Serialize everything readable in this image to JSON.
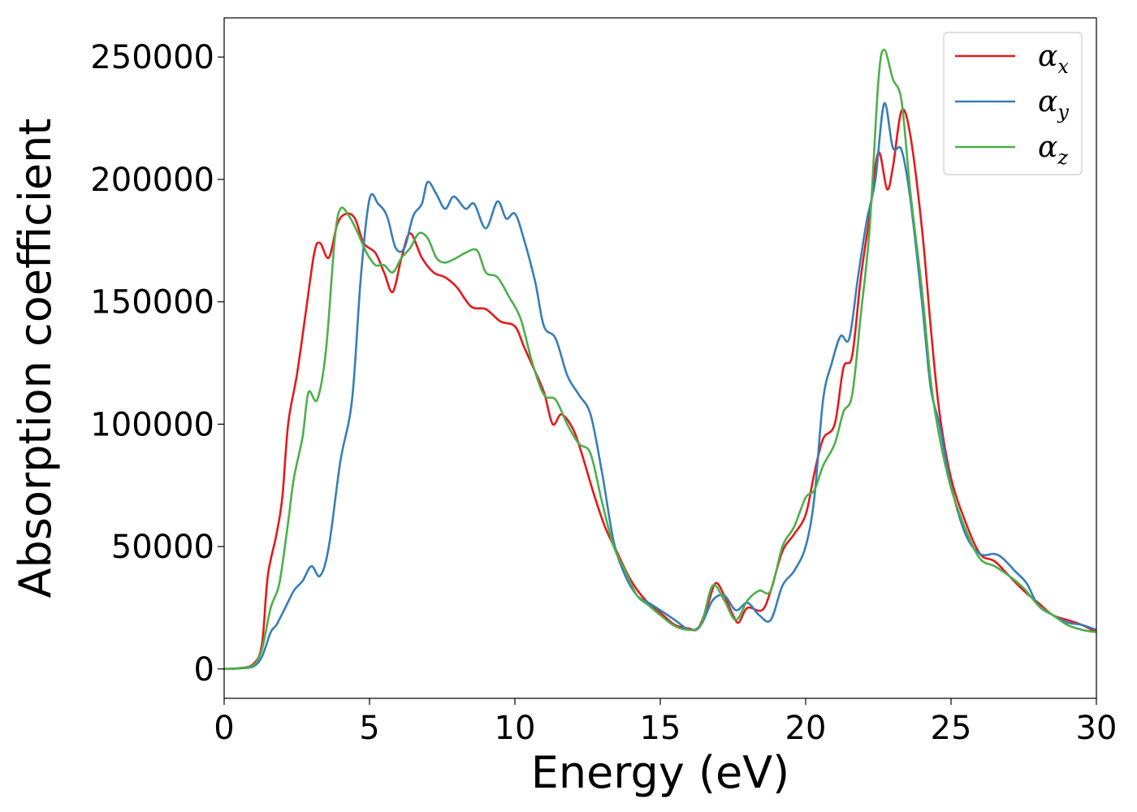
{
  "chart_data": {
    "type": "line",
    "title": "",
    "xlabel": "Energy (eV)",
    "ylabel": "Absorption coefficient",
    "xlim": [
      0,
      30
    ],
    "ylim": [
      -12000,
      266000
    ],
    "xticks": [
      0,
      5,
      10,
      15,
      20,
      25,
      30
    ],
    "yticks": [
      0,
      50000,
      100000,
      150000,
      200000,
      250000
    ],
    "grid": false,
    "legend_position": "top-right",
    "series": [
      {
        "name": "α",
        "subscript": "x",
        "color": "#e41a1c",
        "points": [
          [
            0,
            0
          ],
          [
            0.5,
            300
          ],
          [
            1,
            2000
          ],
          [
            1.3,
            10000
          ],
          [
            1.5,
            38000
          ],
          [
            1.8,
            55000
          ],
          [
            2,
            70000
          ],
          [
            2.2,
            100000
          ],
          [
            2.5,
            120000
          ],
          [
            2.8,
            145000
          ],
          [
            3.1,
            170000
          ],
          [
            3.3,
            174000
          ],
          [
            3.6,
            168000
          ],
          [
            3.9,
            182000
          ],
          [
            4.2,
            186000
          ],
          [
            4.5,
            184000
          ],
          [
            4.8,
            174000
          ],
          [
            5.2,
            170000
          ],
          [
            5.5,
            162000
          ],
          [
            5.8,
            154000
          ],
          [
            6.1,
            168000
          ],
          [
            6.4,
            178000
          ],
          [
            6.8,
            168000
          ],
          [
            7.2,
            162000
          ],
          [
            7.6,
            160000
          ],
          [
            8,
            156000
          ],
          [
            8.5,
            148000
          ],
          [
            9,
            147000
          ],
          [
            9.5,
            142000
          ],
          [
            10,
            140000
          ],
          [
            10.3,
            132000
          ],
          [
            10.6,
            124000
          ],
          [
            11,
            113000
          ],
          [
            11.3,
            100000
          ],
          [
            11.6,
            104000
          ],
          [
            12,
            98000
          ],
          [
            12.3,
            88000
          ],
          [
            12.7,
            72000
          ],
          [
            13.1,
            58000
          ],
          [
            13.5,
            48000
          ],
          [
            14,
            36000
          ],
          [
            14.5,
            28000
          ],
          [
            15,
            23000
          ],
          [
            15.5,
            18000
          ],
          [
            16,
            16500
          ],
          [
            16.3,
            16500
          ],
          [
            16.6,
            25000
          ],
          [
            16.9,
            35000
          ],
          [
            17.2,
            30000
          ],
          [
            17.5,
            22000
          ],
          [
            17.7,
            19000
          ],
          [
            18,
            25000
          ],
          [
            18.5,
            24000
          ],
          [
            18.8,
            32000
          ],
          [
            19.2,
            48000
          ],
          [
            19.6,
            55000
          ],
          [
            20,
            63000
          ],
          [
            20.3,
            80000
          ],
          [
            20.6,
            94000
          ],
          [
            21,
            100000
          ],
          [
            21.3,
            123000
          ],
          [
            21.6,
            128000
          ],
          [
            21.9,
            160000
          ],
          [
            22.2,
            185000
          ],
          [
            22.5,
            211000
          ],
          [
            22.8,
            196000
          ],
          [
            23,
            205000
          ],
          [
            23.3,
            228000
          ],
          [
            23.6,
            218000
          ],
          [
            24,
            180000
          ],
          [
            24.3,
            140000
          ],
          [
            24.6,
            105000
          ],
          [
            25,
            78000
          ],
          [
            25.5,
            60000
          ],
          [
            26,
            47000
          ],
          [
            26.5,
            44000
          ],
          [
            27,
            38000
          ],
          [
            27.5,
            32000
          ],
          [
            28,
            27000
          ],
          [
            28.5,
            22000
          ],
          [
            29,
            20000
          ],
          [
            29.5,
            18000
          ],
          [
            30,
            15000
          ]
        ]
      },
      {
        "name": "α",
        "subscript": "y",
        "color": "#377eb8",
        "points": [
          [
            0,
            0
          ],
          [
            0.5,
            200
          ],
          [
            1,
            1000
          ],
          [
            1.3,
            5000
          ],
          [
            1.6,
            15000
          ],
          [
            1.8,
            18000
          ],
          [
            2.1,
            25000
          ],
          [
            2.4,
            32000
          ],
          [
            2.7,
            36000
          ],
          [
            3,
            42000
          ],
          [
            3.3,
            38000
          ],
          [
            3.6,
            50000
          ],
          [
            4,
            85000
          ],
          [
            4.4,
            110000
          ],
          [
            4.7,
            160000
          ],
          [
            5,
            192000
          ],
          [
            5.3,
            190000
          ],
          [
            5.6,
            185000
          ],
          [
            5.9,
            172000
          ],
          [
            6.2,
            172000
          ],
          [
            6.5,
            185000
          ],
          [
            6.8,
            190000
          ],
          [
            7,
            199000
          ],
          [
            7.3,
            194000
          ],
          [
            7.6,
            188000
          ],
          [
            7.9,
            193000
          ],
          [
            8.3,
            188000
          ],
          [
            8.6,
            190000
          ],
          [
            9,
            180000
          ],
          [
            9.4,
            191000
          ],
          [
            9.7,
            184000
          ],
          [
            10,
            186000
          ],
          [
            10.3,
            176000
          ],
          [
            10.7,
            158000
          ],
          [
            11,
            140000
          ],
          [
            11.4,
            135000
          ],
          [
            11.8,
            120000
          ],
          [
            12.2,
            112000
          ],
          [
            12.6,
            104000
          ],
          [
            13,
            80000
          ],
          [
            13.4,
            52000
          ],
          [
            13.8,
            38000
          ],
          [
            14.2,
            30000
          ],
          [
            14.6,
            27000
          ],
          [
            15,
            24000
          ],
          [
            15.5,
            20000
          ],
          [
            16,
            16000
          ],
          [
            16.4,
            18000
          ],
          [
            16.8,
            28000
          ],
          [
            17.2,
            30000
          ],
          [
            17.6,
            24000
          ],
          [
            18,
            27000
          ],
          [
            18.4,
            22000
          ],
          [
            18.8,
            20000
          ],
          [
            19.2,
            34000
          ],
          [
            19.6,
            40000
          ],
          [
            20,
            50000
          ],
          [
            20.3,
            70000
          ],
          [
            20.6,
            110000
          ],
          [
            20.9,
            125000
          ],
          [
            21.2,
            136000
          ],
          [
            21.5,
            135000
          ],
          [
            21.8,
            160000
          ],
          [
            22.1,
            183000
          ],
          [
            22.4,
            200000
          ],
          [
            22.7,
            231000
          ],
          [
            23,
            213000
          ],
          [
            23.3,
            212000
          ],
          [
            23.6,
            192000
          ],
          [
            24,
            150000
          ],
          [
            24.3,
            115000
          ],
          [
            24.6,
            100000
          ],
          [
            25,
            75000
          ],
          [
            25.5,
            55000
          ],
          [
            26,
            47000
          ],
          [
            26.5,
            47000
          ],
          [
            26.8,
            45000
          ],
          [
            27.2,
            40000
          ],
          [
            27.6,
            35000
          ],
          [
            28,
            26000
          ],
          [
            28.5,
            22000
          ],
          [
            29,
            19000
          ],
          [
            29.5,
            18000
          ],
          [
            30,
            16000
          ]
        ]
      },
      {
        "name": "α",
        "subscript": "z",
        "color": "#4daf4a",
        "points": [
          [
            0,
            0
          ],
          [
            0.5,
            300
          ],
          [
            1,
            1500
          ],
          [
            1.3,
            8000
          ],
          [
            1.6,
            25000
          ],
          [
            1.9,
            35000
          ],
          [
            2.2,
            60000
          ],
          [
            2.4,
            78000
          ],
          [
            2.7,
            95000
          ],
          [
            2.9,
            113000
          ],
          [
            3.2,
            110000
          ],
          [
            3.5,
            130000
          ],
          [
            3.8,
            175000
          ],
          [
            4,
            188000
          ],
          [
            4.3,
            185000
          ],
          [
            4.6,
            178000
          ],
          [
            4.9,
            170000
          ],
          [
            5.2,
            165000
          ],
          [
            5.5,
            165000
          ],
          [
            5.8,
            162000
          ],
          [
            6.1,
            168000
          ],
          [
            6.4,
            172000
          ],
          [
            6.7,
            178000
          ],
          [
            7,
            176000
          ],
          [
            7.3,
            168000
          ],
          [
            7.6,
            166000
          ],
          [
            8,
            168000
          ],
          [
            8.3,
            170000
          ],
          [
            8.7,
            171000
          ],
          [
            9,
            162000
          ],
          [
            9.4,
            160000
          ],
          [
            9.8,
            152000
          ],
          [
            10.2,
            143000
          ],
          [
            10.6,
            125000
          ],
          [
            11,
            112000
          ],
          [
            11.4,
            110000
          ],
          [
            11.8,
            100000
          ],
          [
            12.2,
            92000
          ],
          [
            12.6,
            88000
          ],
          [
            13,
            68000
          ],
          [
            13.4,
            50000
          ],
          [
            13.8,
            40000
          ],
          [
            14.2,
            30000
          ],
          [
            14.6,
            26000
          ],
          [
            15,
            22000
          ],
          [
            15.5,
            17500
          ],
          [
            16,
            16000
          ],
          [
            16.4,
            18000
          ],
          [
            16.8,
            34000
          ],
          [
            17.2,
            28000
          ],
          [
            17.6,
            20000
          ],
          [
            18,
            28000
          ],
          [
            18.4,
            32000
          ],
          [
            18.8,
            32000
          ],
          [
            19.2,
            50000
          ],
          [
            19.6,
            58000
          ],
          [
            20,
            70000
          ],
          [
            20.3,
            73000
          ],
          [
            20.6,
            83000
          ],
          [
            21,
            92000
          ],
          [
            21.3,
            105000
          ],
          [
            21.6,
            112000
          ],
          [
            21.9,
            145000
          ],
          [
            22.2,
            180000
          ],
          [
            22.5,
            240000
          ],
          [
            22.7,
            253000
          ],
          [
            23,
            241000
          ],
          [
            23.3,
            232000
          ],
          [
            23.6,
            195000
          ],
          [
            24,
            155000
          ],
          [
            24.3,
            118000
          ],
          [
            24.6,
            95000
          ],
          [
            25,
            74000
          ],
          [
            25.5,
            57000
          ],
          [
            26,
            45000
          ],
          [
            26.5,
            42000
          ],
          [
            27,
            38000
          ],
          [
            27.5,
            33000
          ],
          [
            28,
            26000
          ],
          [
            28.5,
            22000
          ],
          [
            29,
            18000
          ],
          [
            29.5,
            16000
          ],
          [
            30,
            15000
          ]
        ]
      }
    ]
  }
}
